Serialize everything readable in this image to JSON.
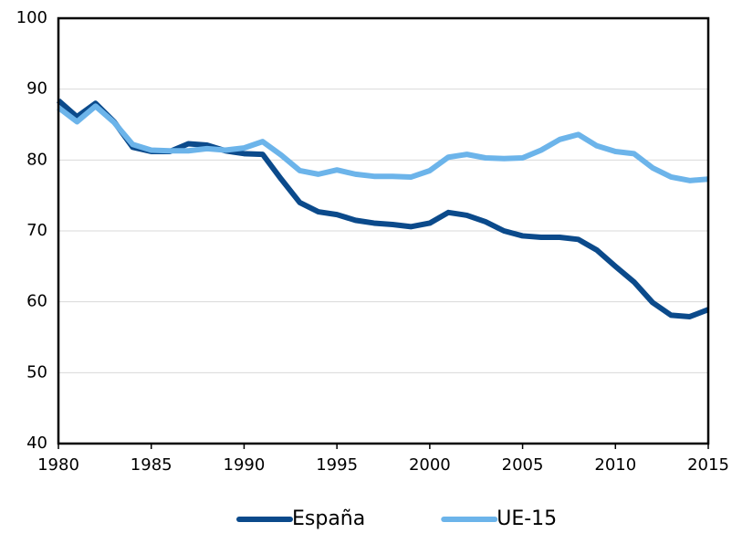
{
  "chart_data": {
    "type": "line",
    "x": [
      1980,
      1981,
      1982,
      1983,
      1984,
      1985,
      1986,
      1987,
      1988,
      1989,
      1990,
      1991,
      1992,
      1993,
      1994,
      1995,
      1996,
      1997,
      1998,
      1999,
      2000,
      2001,
      2002,
      2003,
      2004,
      2005,
      2006,
      2007,
      2008,
      2009,
      2010,
      2011,
      2012,
      2013,
      2014,
      2015
    ],
    "series": [
      {
        "name": "España",
        "color": "#0b4a8b",
        "values": [
          88.4,
          86.1,
          88.0,
          85.4,
          81.8,
          81.2,
          81.2,
          82.3,
          82.1,
          81.3,
          80.9,
          80.8,
          77.3,
          74.0,
          72.7,
          72.3,
          71.5,
          71.1,
          70.9,
          70.6,
          71.1,
          72.6,
          72.2,
          71.3,
          70.0,
          69.3,
          69.1,
          69.1,
          68.8,
          67.3,
          65.0,
          62.8,
          59.9,
          58.1,
          57.9,
          58.9
        ]
      },
      {
        "name": "UE-15",
        "color": "#6cb4ea",
        "values": [
          87.4,
          85.4,
          87.6,
          85.3,
          82.2,
          81.4,
          81.3,
          81.3,
          81.6,
          81.4,
          81.7,
          82.6,
          80.7,
          78.5,
          78.0,
          78.6,
          78.0,
          77.7,
          77.7,
          77.6,
          78.5,
          80.4,
          80.8,
          80.3,
          80.2,
          80.3,
          81.4,
          82.9,
          83.6,
          82.0,
          81.2,
          80.9,
          78.9,
          77.6,
          77.1,
          77.3
        ]
      }
    ],
    "xlim": [
      1980,
      2015
    ],
    "xticks": [
      1980,
      1985,
      1990,
      1995,
      2000,
      2005,
      2010,
      2015
    ],
    "ylim": [
      40,
      100
    ],
    "yticks": [
      40,
      50,
      60,
      70,
      80,
      90,
      100
    ],
    "grid": true,
    "legend": "bottom"
  }
}
